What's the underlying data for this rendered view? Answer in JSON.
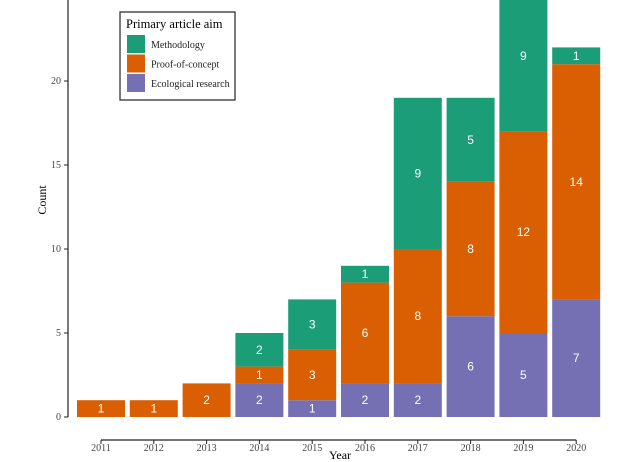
{
  "chart_data": {
    "type": "bar",
    "stacked": true,
    "title": "",
    "xlabel": "Year",
    "ylabel": "Count",
    "ylim": [
      0,
      25
    ],
    "yticks": [
      0,
      5,
      10,
      15,
      20,
      25
    ],
    "grid": false,
    "categories": [
      "2011",
      "2012",
      "2013",
      "2014",
      "2015",
      "2016",
      "2017",
      "2018",
      "2019",
      "2020"
    ],
    "series": [
      {
        "name": "Ecological research",
        "color": "#7570b3",
        "values": [
          0,
          0,
          0,
          2,
          1,
          2,
          2,
          6,
          5,
          7
        ]
      },
      {
        "name": "Proof-of-concept",
        "color": "#d95f02",
        "values": [
          1,
          1,
          2,
          1,
          3,
          6,
          8,
          8,
          12,
          14
        ]
      },
      {
        "name": "Methodology",
        "color": "#1b9e77",
        "values": [
          0,
          0,
          0,
          2,
          3,
          1,
          9,
          5,
          9,
          1
        ]
      }
    ],
    "legend": {
      "title": "Primary article aim",
      "placement": "top-left",
      "entries": [
        "Methodology",
        "Proof-of-concept",
        "Ecological research"
      ]
    }
  }
}
